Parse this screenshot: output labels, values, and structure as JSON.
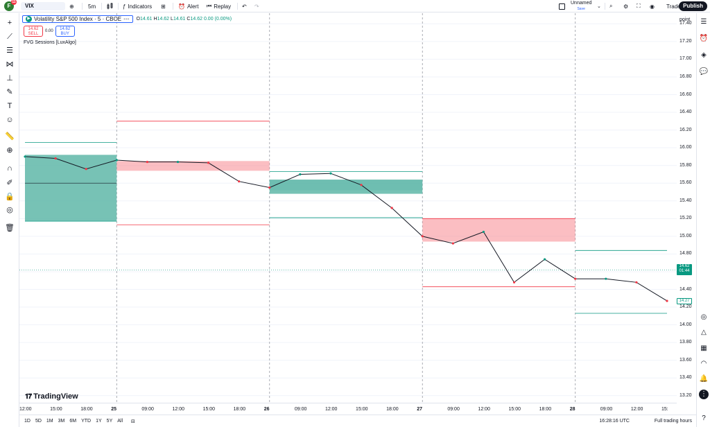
{
  "topbar": {
    "avatar_letter": "F",
    "avatar_badge": "11",
    "symbol": "VIX",
    "interval": "5m",
    "indicators_label": "Indicators",
    "alert_label": "Alert",
    "replay_label": "Replay",
    "layout_name": "Unnamed",
    "layout_status": "Save",
    "trade_label": "Trade",
    "publish_label": "Publish"
  },
  "legend": {
    "title": "Volatility S&P 500 Index · 5 · CBOE",
    "o_label": "O",
    "o_value": "14.61",
    "h_label": "H",
    "h_value": "14.62",
    "l_label": "L",
    "l_value": "14.61",
    "c_label": "C",
    "c_value": "14.62",
    "change": "0.00 (0.00%)",
    "more_icon": "•••"
  },
  "trade_buttons": {
    "sell_price": "14.62",
    "sell_label": "SELL",
    "spread": "0.00",
    "buy_price": "14.62",
    "buy_label": "BUY"
  },
  "indicator_label": "FVG Sessions [LuxAlgo]",
  "price_axis": {
    "title": "point",
    "labels": [
      "17.40",
      "17.20",
      "17.00",
      "16.80",
      "16.60",
      "16.40",
      "16.20",
      "16.00",
      "15.80",
      "15.60",
      "15.40",
      "15.20",
      "15.00",
      "14.80",
      "14.60",
      "14.40",
      "14.20",
      "14.00",
      "13.80",
      "13.60",
      "13.40",
      "13.20"
    ],
    "last_price": "14.62",
    "countdown": "01:44",
    "fvg_price": "14.27"
  },
  "time_axis": {
    "labels": [
      {
        "t": "12:00",
        "day": false
      },
      {
        "t": "15:00",
        "day": false
      },
      {
        "t": "18:00",
        "day": false
      },
      {
        "t": "25",
        "day": true
      },
      {
        "t": "09:00",
        "day": false
      },
      {
        "t": "12:00",
        "day": false
      },
      {
        "t": "15:00",
        "day": false
      },
      {
        "t": "18:00",
        "day": false
      },
      {
        "t": "26",
        "day": true
      },
      {
        "t": "09:00",
        "day": false
      },
      {
        "t": "12:00",
        "day": false
      },
      {
        "t": "15:00",
        "day": false
      },
      {
        "t": "18:00",
        "day": false
      },
      {
        "t": "27",
        "day": true
      },
      {
        "t": "09:00",
        "day": false
      },
      {
        "t": "12:00",
        "day": false
      },
      {
        "t": "15:00",
        "day": false
      },
      {
        "t": "18:00",
        "day": false
      },
      {
        "t": "28",
        "day": true
      },
      {
        "t": "09:00",
        "day": false
      },
      {
        "t": "12:00",
        "day": false
      },
      {
        "t": "15:",
        "day": false
      }
    ]
  },
  "bottombar": {
    "ranges": [
      "1D",
      "5D",
      "1M",
      "3M",
      "6M",
      "YTD",
      "1Y",
      "5Y",
      "All"
    ],
    "clock": "16:28:16 UTC",
    "session": "Full trading hours"
  },
  "brand": "TradingView",
  "colors": {
    "bull": "#089981",
    "bear": "#f23645",
    "accent": "#2962ff",
    "bull_zone": "#5fb7a8",
    "bear_zone": "#f7898f"
  },
  "chart_data": {
    "type": "line",
    "title": "Volatility S&P 500 Index · 5 · CBOE",
    "x": [
      "24 12:00",
      "24 15:00",
      "24 18:00",
      "25 00:00",
      "25 09:00",
      "25 12:00",
      "25 15:00",
      "25 18:00",
      "26 00:00",
      "26 09:00",
      "26 12:00",
      "26 15:00",
      "26 18:00",
      "27 00:00",
      "27 09:00",
      "27 12:00",
      "27 15:00",
      "27 18:00",
      "28 00:00",
      "28 09:00",
      "28 12:00",
      "28 15:00"
    ],
    "series": [
      {
        "values": [
          15.9,
          15.88,
          15.76,
          15.86,
          15.84,
          15.84,
          15.83,
          15.62,
          15.55,
          15.7,
          15.71,
          15.58,
          15.32,
          15.0,
          14.92,
          15.05,
          14.48,
          14.74,
          14.52,
          14.52,
          14.48,
          14.27
        ]
      }
    ],
    "zones": [
      {
        "kind": "bullish",
        "session": "24",
        "top": 15.92,
        "bottom": 15.17,
        "mid_line": 15.6
      },
      {
        "kind": "bearish",
        "session": "25",
        "top": 15.85,
        "bottom": 15.74
      },
      {
        "kind": "bullish",
        "session": "26",
        "top": 15.64,
        "bottom": 15.48
      },
      {
        "kind": "bullish-mitigated",
        "session": "26",
        "top": 15.64,
        "bottom": 15.52
      },
      {
        "kind": "bearish",
        "session": "27",
        "top": 15.2,
        "bottom": 14.94
      }
    ],
    "session_levels": [
      {
        "session": "24",
        "high": 16.06,
        "low": 15.17
      },
      {
        "session": "25",
        "high": 16.3,
        "low": 15.13
      },
      {
        "session": "26",
        "high": 15.73,
        "low": 15.21
      },
      {
        "session": "27",
        "high": 15.2,
        "low": 14.43
      },
      {
        "session": "28",
        "high": 14.84,
        "low": 14.13
      }
    ],
    "ylim": [
      13.12,
      17.52
    ],
    "grid": true,
    "last_price": 14.62
  }
}
